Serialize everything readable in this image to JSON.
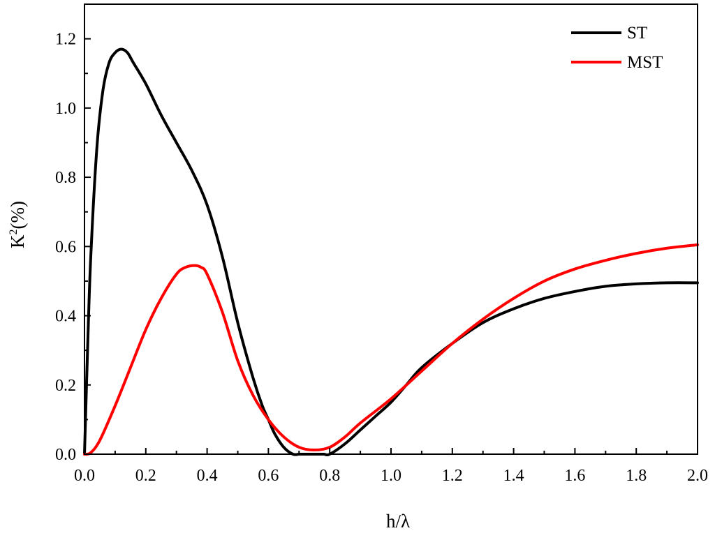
{
  "chart_data": {
    "type": "line",
    "xlabel": "h/λ",
    "ylabel_base": "K",
    "ylabel_sup": "2",
    "ylabel_rest": "(%)",
    "xlim": [
      0.0,
      2.0
    ],
    "ylim": [
      0.0,
      1.3
    ],
    "x_ticks": [
      "0.0",
      "0.2",
      "0.4",
      "0.6",
      "0.8",
      "1.0",
      "1.2",
      "1.4",
      "1.6",
      "1.8",
      "2.0"
    ],
    "y_ticks": [
      "0.0",
      "0.2",
      "0.4",
      "0.6",
      "0.8",
      "1.0",
      "1.2"
    ],
    "grid": false,
    "legend_position": "top-right",
    "series": [
      {
        "name": "ST",
        "color": "#000000",
        "x": [
          0.0,
          0.01,
          0.02,
          0.04,
          0.06,
          0.08,
          0.1,
          0.12,
          0.14,
          0.16,
          0.2,
          0.25,
          0.3,
          0.35,
          0.4,
          0.45,
          0.5,
          0.55,
          0.58,
          0.6,
          0.62,
          0.65,
          0.68,
          0.7,
          0.72,
          0.75,
          0.78,
          0.8,
          0.85,
          0.9,
          0.95,
          1.0,
          1.05,
          1.1,
          1.2,
          1.3,
          1.4,
          1.5,
          1.6,
          1.7,
          1.8,
          1.9,
          2.0
        ],
        "y": [
          0.0,
          0.3,
          0.56,
          0.88,
          1.05,
          1.13,
          1.16,
          1.17,
          1.16,
          1.13,
          1.07,
          0.98,
          0.9,
          0.82,
          0.72,
          0.57,
          0.38,
          0.22,
          0.14,
          0.1,
          0.06,
          0.02,
          0.0,
          0.0,
          0.0,
          0.0,
          0.0,
          0.0,
          0.03,
          0.07,
          0.11,
          0.15,
          0.2,
          0.25,
          0.32,
          0.38,
          0.42,
          0.45,
          0.47,
          0.485,
          0.492,
          0.495,
          0.495
        ]
      },
      {
        "name": "MST",
        "color": "#ff0000",
        "x": [
          0.0,
          0.02,
          0.05,
          0.1,
          0.15,
          0.2,
          0.25,
          0.3,
          0.33,
          0.36,
          0.38,
          0.4,
          0.45,
          0.5,
          0.55,
          0.6,
          0.65,
          0.7,
          0.75,
          0.8,
          0.85,
          0.9,
          1.0,
          1.1,
          1.2,
          1.3,
          1.4,
          1.5,
          1.6,
          1.7,
          1.8,
          1.9,
          2.0
        ],
        "y": [
          0.0,
          0.004,
          0.04,
          0.14,
          0.25,
          0.36,
          0.45,
          0.52,
          0.54,
          0.545,
          0.54,
          0.52,
          0.41,
          0.27,
          0.17,
          0.1,
          0.05,
          0.02,
          0.012,
          0.02,
          0.05,
          0.09,
          0.16,
          0.24,
          0.32,
          0.39,
          0.45,
          0.5,
          0.535,
          0.56,
          0.58,
          0.595,
          0.605
        ]
      }
    ]
  }
}
